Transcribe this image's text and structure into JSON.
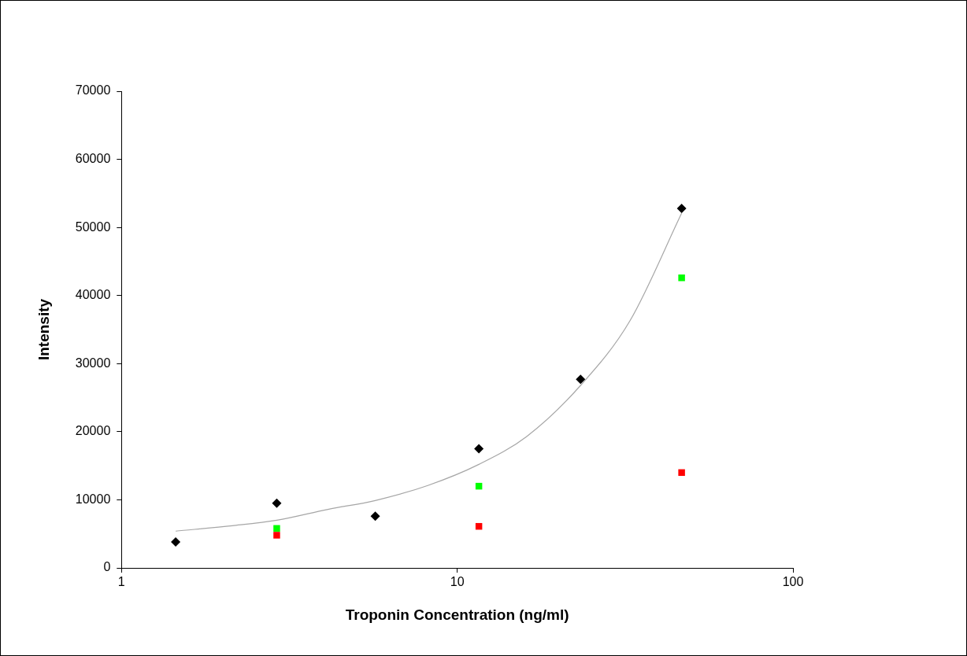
{
  "chart_data": {
    "type": "scatter",
    "xlabel": "Troponin Concentration (ng/ml)",
    "ylabel": "Intensity",
    "log": "x",
    "grid": false,
    "legend": false,
    "xlim": [
      1,
      100
    ],
    "xticks": [
      1,
      10,
      100
    ],
    "ylim": [
      0,
      70000
    ],
    "yticks": [
      0,
      10000,
      20000,
      30000,
      40000,
      50000,
      60000,
      70000
    ],
    "series": [
      {
        "type": "line",
        "color": "#a6a6a6",
        "marker": "none",
        "x": [
          1.45,
          2.14,
          2.9,
          4.12,
          5.7,
          8.17,
          11.6,
          16.1,
          23.3,
          32.7,
          46.6
        ],
        "values": [
          5400,
          6200,
          7000,
          8600,
          9900,
          12100,
          15200,
          19300,
          26800,
          36300,
          52100
        ]
      },
      {
        "color": "#000000",
        "marker": "diamond",
        "x": [
          1.45,
          2.9,
          5.7,
          11.6,
          23.3,
          46.6
        ],
        "values": [
          3800,
          9500,
          7600,
          17500,
          27700,
          52800
        ]
      },
      {
        "color": "#00ff00",
        "marker": "square",
        "x": [
          2.9,
          11.6,
          46.6
        ],
        "values": [
          5800,
          12000,
          42600
        ]
      },
      {
        "color": "#ff0000",
        "marker": "square",
        "x": [
          2.9,
          11.6,
          46.6
        ],
        "values": [
          4800,
          6100,
          14000
        ]
      }
    ]
  }
}
